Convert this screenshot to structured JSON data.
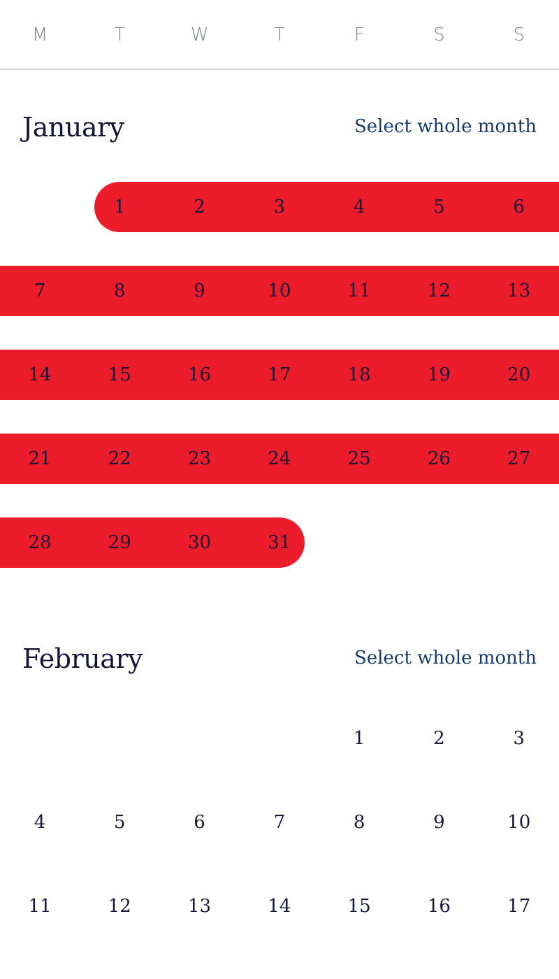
{
  "weekdays": [
    "M",
    "T",
    "W",
    "T",
    "F",
    "S",
    "S"
  ],
  "colors": {
    "selection": "#ec1c2a",
    "text": "#16163a",
    "link": "#153a6b",
    "weekday": "#7a7f93",
    "divider": "#cfd3d8"
  },
  "months": [
    {
      "name": "January",
      "select_label": "Select whole month",
      "selected": true,
      "weeks": [
        [
          null,
          "1",
          "2",
          "3",
          "4",
          "5",
          "6"
        ],
        [
          "7",
          "8",
          "9",
          "10",
          "11",
          "12",
          "13"
        ],
        [
          "14",
          "15",
          "16",
          "17",
          "18",
          "19",
          "20"
        ],
        [
          "21",
          "22",
          "23",
          "24",
          "25",
          "26",
          "27"
        ],
        [
          "28",
          "29",
          "30",
          "31",
          null,
          null,
          null
        ]
      ]
    },
    {
      "name": "February",
      "select_label": "Select whole month",
      "selected": false,
      "weeks": [
        [
          null,
          null,
          null,
          null,
          "1",
          "2",
          "3"
        ],
        [
          "4",
          "5",
          "6",
          "7",
          "8",
          "9",
          "10"
        ],
        [
          "11",
          "12",
          "13",
          "14",
          "15",
          "16",
          "17"
        ]
      ]
    }
  ]
}
